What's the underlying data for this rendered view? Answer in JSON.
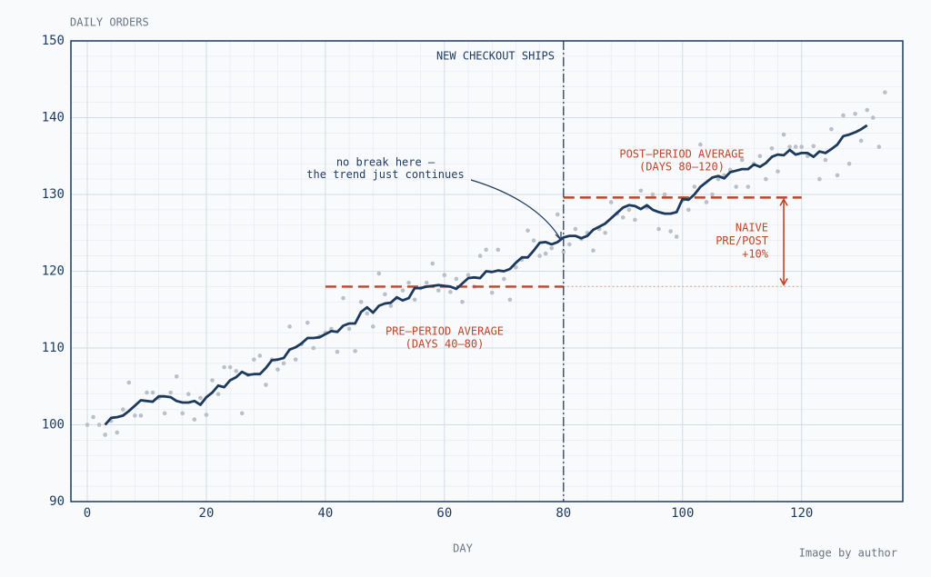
{
  "chart_data": {
    "type": "line",
    "title": "DAILY ORDERS",
    "x_label": "DAY",
    "credit": "Image by author",
    "xlim": [
      -2.75,
      137
    ],
    "ylim": [
      90,
      150
    ],
    "xticks": [
      0,
      20,
      40,
      60,
      80,
      100,
      120
    ],
    "yticks": [
      90,
      100,
      110,
      120,
      130,
      140,
      150
    ],
    "grid": true,
    "scatter": {
      "color": "#b9c0c9",
      "x": [
        0,
        1,
        2,
        3,
        4,
        5,
        6,
        7,
        8,
        9,
        10,
        11,
        12,
        13,
        14,
        15,
        16,
        17,
        18,
        19,
        20,
        21,
        22,
        23,
        24,
        25,
        26,
        27,
        28,
        29,
        30,
        31,
        32,
        33,
        34,
        35,
        36,
        37,
        38,
        39,
        40,
        41,
        42,
        43,
        44,
        45,
        46,
        47,
        48,
        49,
        50,
        51,
        52,
        53,
        54,
        55,
        56,
        57,
        58,
        59,
        60,
        61,
        62,
        63,
        64,
        65,
        66,
        67,
        68,
        69,
        70,
        71,
        72,
        73,
        74,
        75,
        76,
        77,
        78,
        79,
        80,
        81,
        82,
        83,
        84,
        85,
        86,
        87,
        88,
        89,
        90,
        91,
        92,
        93,
        94,
        95,
        96,
        97,
        98,
        99,
        100,
        101,
        102,
        103,
        104,
        105,
        106,
        107,
        108,
        109,
        110,
        111,
        112,
        113,
        114,
        115,
        116,
        117,
        118,
        119,
        120,
        121,
        122,
        123,
        124,
        125,
        126,
        127,
        128,
        129,
        130,
        131,
        132,
        133,
        134
      ],
      "values": [
        100,
        101,
        100,
        98.7,
        100.5,
        99,
        102,
        105.5,
        101.2,
        101.2,
        104.2,
        104.2,
        103.5,
        101.5,
        104.2,
        106.3,
        101.5,
        104,
        100.7,
        103.5,
        101.3,
        105.8,
        104,
        107.5,
        107.5,
        107,
        101.5,
        106.5,
        108.5,
        109,
        105.2,
        108.5,
        107.2,
        108,
        112.8,
        108.5,
        110.5,
        113.3,
        110,
        111.5,
        112,
        112.5,
        109.5,
        116.5,
        112.5,
        109.6,
        116,
        114.5,
        112.8,
        119.7,
        117,
        115.5,
        116.5,
        117.5,
        118.5,
        116.3,
        117.8,
        118.5,
        121,
        117.5,
        119.5,
        117.3,
        119,
        116,
        119.5,
        118,
        122,
        122.8,
        117.2,
        122.8,
        119,
        116.3,
        120.5,
        121.5,
        125.3,
        124,
        122,
        122.3,
        123,
        127.4,
        122.5,
        123.5,
        125.5,
        124.2,
        125,
        122.7,
        125.5,
        125,
        129,
        127.5,
        127,
        128,
        126.7,
        130.5,
        128.3,
        130,
        125.5,
        130,
        125.2,
        124.5,
        129.2,
        128,
        131,
        136.5,
        129,
        130,
        132,
        132.5,
        133.2,
        131,
        134.5,
        131,
        134,
        135,
        132,
        136,
        133,
        137.8,
        136.2,
        136.2,
        136.2,
        135,
        136.3,
        132,
        134.5,
        138.5,
        132.5,
        140.3,
        134,
        140.5,
        137,
        141,
        140,
        136.2,
        143.3
      ]
    },
    "series": [
      {
        "color": "#1d3a5c",
        "x": [
          3,
          4,
          5,
          6,
          7,
          8,
          9,
          10,
          11,
          12,
          13,
          14,
          15,
          16,
          17,
          18,
          19,
          20,
          21,
          22,
          23,
          24,
          25,
          26,
          27,
          28,
          29,
          30,
          31,
          32,
          33,
          34,
          35,
          36,
          37,
          38,
          39,
          40,
          41,
          42,
          43,
          44,
          45,
          46,
          47,
          48,
          49,
          50,
          51,
          52,
          53,
          54,
          55,
          56,
          57,
          58,
          59,
          60,
          61,
          62,
          63,
          64,
          65,
          66,
          67,
          68,
          69,
          70,
          71,
          72,
          73,
          74,
          75,
          76,
          77,
          78,
          79,
          80,
          81,
          82,
          83,
          84,
          85,
          86,
          87,
          88,
          89,
          90,
          91,
          92,
          93,
          94,
          95,
          96,
          97,
          98,
          99,
          100,
          101,
          102,
          103,
          104,
          105,
          106,
          107,
          108,
          109,
          110,
          111,
          112,
          113,
          114,
          115,
          116,
          117,
          118,
          119,
          120,
          121,
          122,
          123,
          124,
          125,
          126,
          127,
          128,
          129,
          130,
          131
        ],
        "values": [
          100,
          100.9,
          101,
          101.2,
          101.8,
          102.5,
          103.2,
          103.1,
          103,
          103.7,
          103.7,
          103.6,
          103.1,
          102.9,
          102.9,
          103.1,
          102.6,
          103.6,
          104.2,
          105.1,
          104.9,
          105.8,
          106.2,
          106.9,
          106.5,
          106.6,
          106.6,
          107.4,
          108.4,
          108.5,
          108.7,
          109.8,
          110.1,
          110.6,
          111.3,
          111.3,
          111.4,
          111.8,
          112.2,
          112.1,
          112.9,
          113.2,
          113.2,
          114.7,
          115.3,
          114.6,
          115.5,
          115.8,
          115.9,
          116.6,
          116.2,
          116.5,
          117.8,
          117.8,
          118,
          118.1,
          118.2,
          118.1,
          118,
          117.7,
          118.4,
          119.1,
          119.2,
          119.1,
          120,
          119.9,
          120.1,
          120,
          120.3,
          121.1,
          121.8,
          121.8,
          122.7,
          123.7,
          123.8,
          123.5,
          123.8,
          124.4,
          124.6,
          124.6,
          124.3,
          124.6,
          125.4,
          125.8,
          126.2,
          126.9,
          127.6,
          128.3,
          128.6,
          128.5,
          128.1,
          128.6,
          128,
          127.7,
          127.5,
          127.5,
          127.7,
          129.4,
          129.3,
          130,
          131,
          131.6,
          132.2,
          132.4,
          132.1,
          132.9,
          133.1,
          133.3,
          133.3,
          133.9,
          133.6,
          134.1,
          134.9,
          135.2,
          135.1,
          135.8,
          135.2,
          135.4,
          135.4,
          134.9,
          135.6,
          135.4,
          135.9,
          136.5,
          137.6,
          137.8,
          138.1,
          138.5,
          139
        ]
      }
    ],
    "reference_lines": [
      {
        "value": 118,
        "x": [
          40,
          80
        ],
        "color": "#c0442a",
        "style": "dashed"
      },
      {
        "value": 129.6,
        "x": [
          80,
          120
        ],
        "color": "#c0442a",
        "style": "dashed"
      },
      {
        "value": 118,
        "x": [
          80,
          120
        ],
        "color": "#e0a090",
        "style": "dotted"
      }
    ],
    "vertical_line": {
      "x": 80,
      "color": "#2a3d5c"
    },
    "arrow": {
      "x": 117,
      "from": 129.6,
      "to": 118,
      "color": "#c0442a"
    },
    "annotations": [
      {
        "lines": [
          "NEW CHECKOUT SHIPS"
        ],
        "color": "#1d3a5c"
      },
      {
        "lines": [
          "no break here —",
          "the trend just continues"
        ],
        "color": "#1d3a5c"
      },
      {
        "lines": [
          "PRE–PERIOD AVERAGE",
          "(DAYS 40–80)"
        ],
        "color": "#c0442a"
      },
      {
        "lines": [
          "POST–PERIOD AVERAGE",
          "(DAYS 80–120)"
        ],
        "color": "#c0442a"
      },
      {
        "lines": [
          "NAIVE",
          "PRE/POST",
          "+10%"
        ],
        "color": "#c0442a"
      }
    ]
  }
}
